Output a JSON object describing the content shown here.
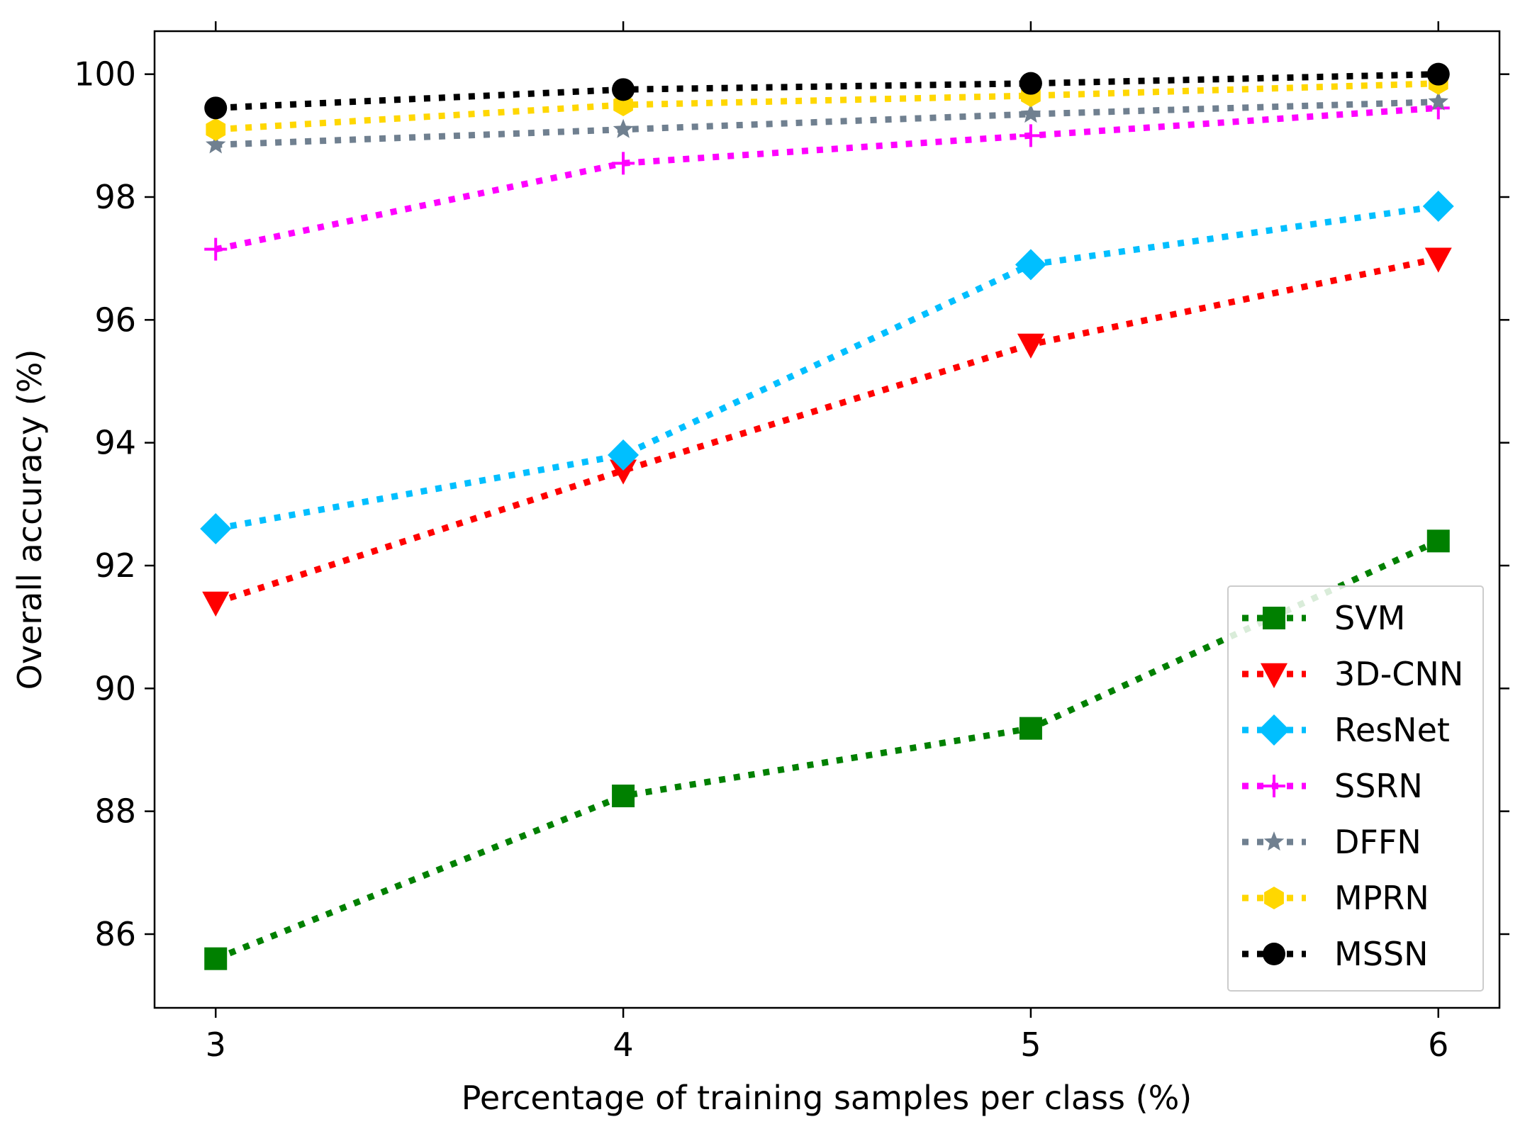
{
  "chart_data": {
    "type": "line",
    "title": "",
    "xlabel": "Percentage of training samples per class (%)",
    "ylabel": "Overall accuracy (%)",
    "x": [
      3,
      4,
      5,
      6
    ],
    "xlim": [
      2.85,
      6.15
    ],
    "ylim": [
      84.8,
      100.7
    ],
    "xticks": [
      3,
      4,
      5,
      6
    ],
    "yticks": [
      86,
      88,
      90,
      92,
      94,
      96,
      98,
      100
    ],
    "grid": false,
    "legend_position": "lower-right",
    "series": [
      {
        "name": "SVM",
        "color": "#008000",
        "marker": "square",
        "values": [
          85.6,
          88.25,
          89.35,
          92.4
        ]
      },
      {
        "name": "3D-CNN",
        "color": "#ff0000",
        "marker": "triangle-down",
        "values": [
          91.4,
          93.55,
          95.6,
          97.0
        ]
      },
      {
        "name": "ResNet",
        "color": "#00bfff",
        "marker": "diamond",
        "values": [
          92.6,
          93.8,
          96.9,
          97.85
        ]
      },
      {
        "name": "SSRN",
        "color": "#ff00ff",
        "marker": "plus",
        "values": [
          97.15,
          98.55,
          99.0,
          99.45
        ]
      },
      {
        "name": "DFFN",
        "color": "#708090",
        "marker": "star",
        "values": [
          98.85,
          99.1,
          99.35,
          99.55
        ]
      },
      {
        "name": "MPRN",
        "color": "#ffd700",
        "marker": "hexagon",
        "values": [
          99.1,
          99.5,
          99.65,
          99.85
        ]
      },
      {
        "name": "MSSN",
        "color": "#000000",
        "marker": "circle",
        "values": [
          99.45,
          99.75,
          99.85,
          100.0
        ]
      }
    ]
  }
}
